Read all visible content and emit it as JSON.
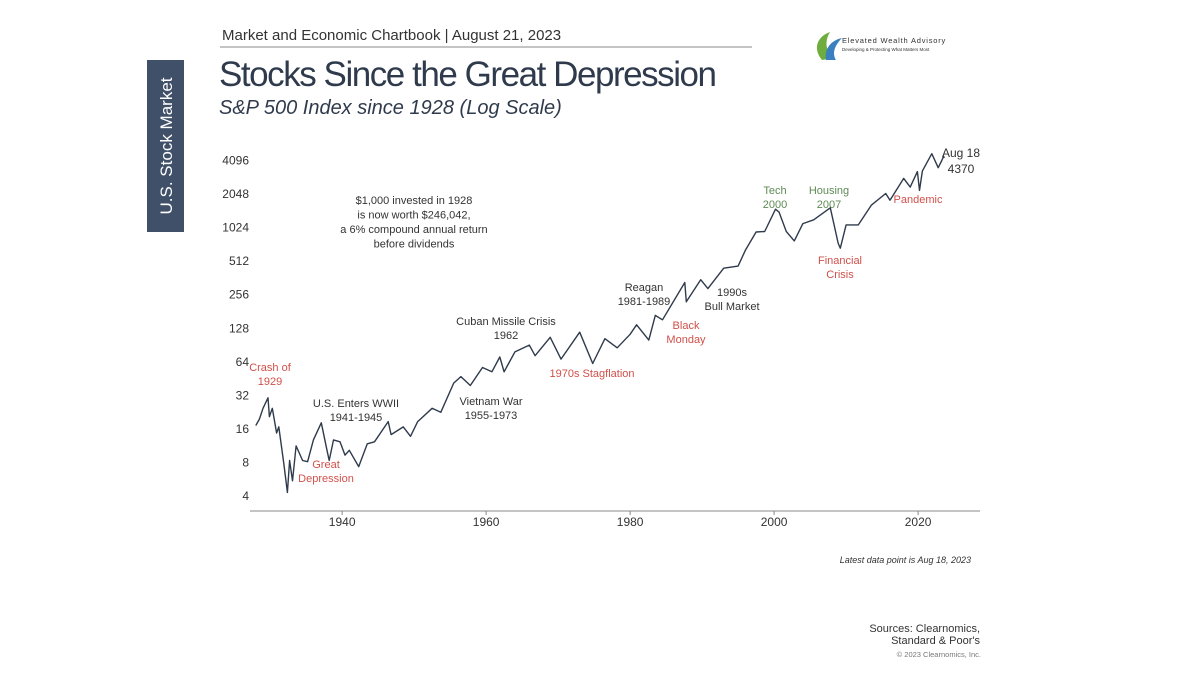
{
  "header": {
    "text": "Market and Economic Chartbook | August 21, 2023"
  },
  "sidebar": {
    "label": "U.S. Stock Market"
  },
  "logo": {
    "name": "Elevated Wealth Advisory",
    "tagline": "Developing & Protecting What Matters Most"
  },
  "chart_data": {
    "type": "line",
    "title": "Stocks Since the Great Depression",
    "subtitle": "S&P 500 Index since 1928 (Log Scale)",
    "log_scale": true,
    "grid": false,
    "color": "#2f3b4c",
    "x": [
      1928.0,
      1928.5,
      1929.0,
      1929.7,
      1929.9,
      1930.3,
      1930.9,
      1931.2,
      1931.9,
      1932.4,
      1932.7,
      1933.1,
      1933.6,
      1934.5,
      1935.2,
      1936.0,
      1937.1,
      1937.9,
      1938.2,
      1938.8,
      1939.7,
      1940.4,
      1941.0,
      1942.3,
      1943.5,
      1944.5,
      1946.4,
      1946.8,
      1948.5,
      1949.5,
      1950.5,
      1952.5,
      1953.7,
      1955.5,
      1956.5,
      1957.8,
      1959.5,
      1960.8,
      1961.9,
      1962.5,
      1964.0,
      1966.0,
      1966.8,
      1968.9,
      1970.4,
      1973.0,
      1974.8,
      1976.5,
      1978.2,
      1980.0,
      1980.9,
      1982.6,
      1983.5,
      1984.5,
      1987.6,
      1987.8,
      1989.8,
      1990.8,
      1993.0,
      1995.0,
      1996.0,
      1997.5,
      1998.7,
      2000.2,
      2000.7,
      2001.7,
      2002.8,
      2004.0,
      2005.5,
      2007.8,
      2008.9,
      2009.2,
      2010.0,
      2011.7,
      2013.5,
      2015.5,
      2016.1,
      2018.0,
      2018.9,
      2019.9,
      2020.2,
      2020.6,
      2021.9,
      2022.8,
      2023.3,
      2023.55,
      2023.63
    ],
    "values": [
      17.5,
      20,
      25,
      31,
      21,
      25,
      15,
      17,
      8,
      4.4,
      8.5,
      5.6,
      11.5,
      8.5,
      8.3,
      13,
      18.5,
      10.5,
      8.5,
      13,
      12.5,
      9.5,
      10.5,
      7.5,
      12,
      12.5,
      19,
      14.5,
      17,
      14,
      19,
      25,
      23,
      42,
      48,
      40,
      58,
      53,
      72,
      53,
      80,
      92,
      74,
      108,
      69,
      120,
      63,
      105,
      87,
      115,
      140,
      102,
      170,
      155,
      335,
      225,
      355,
      295,
      450,
      470,
      650,
      950,
      960,
      1520,
      1430,
      960,
      790,
      1130,
      1220,
      1565,
      750,
      680,
      1100,
      1100,
      1650,
      2100,
      1830,
      2870,
      2400,
      3300,
      2240,
      3350,
      4780,
      3580,
      4150,
      4540,
      4370
    ],
    "end_label": "Aug 18",
    "xlim": [
      1927.2,
      2028.6
    ],
    "xticks": [
      1940,
      1960,
      1980,
      2000,
      2020
    ],
    "ylim": [
      3,
      5600
    ],
    "yticks": [
      4,
      8,
      16,
      32,
      64,
      128,
      256,
      512,
      1024,
      2048,
      4096
    ],
    "annotations": [
      {
        "lines": [
          "Crash of",
          "1929"
        ],
        "color": "#d0504a"
      },
      {
        "lines": [
          "Great",
          "Depression"
        ],
        "color": "#d0504a"
      },
      {
        "lines": [
          "U.S. Enters WWII",
          "1941-1945"
        ],
        "color": "#333333"
      },
      {
        "lines": [
          "Vietnam War",
          "1955-1973"
        ],
        "color": "#333333"
      },
      {
        "lines": [
          "Cuban Missile Crisis",
          "1962"
        ],
        "color": "#333333"
      },
      {
        "lines": [
          "1970s Stagflation"
        ],
        "color": "#d0504a"
      },
      {
        "lines": [
          "Reagan",
          "1981-1989"
        ],
        "color": "#333333"
      },
      {
        "lines": [
          "Black",
          "Monday"
        ],
        "color": "#d0504a"
      },
      {
        "lines": [
          "1990s",
          "Bull Market"
        ],
        "color": "#333333"
      },
      {
        "lines": [
          "Tech",
          "2000"
        ],
        "color": "#5f8a55"
      },
      {
        "lines": [
          "Housing",
          "2007"
        ],
        "color": "#5f8a55"
      },
      {
        "lines": [
          "Financial",
          "Crisis"
        ],
        "color": "#d0504a"
      },
      {
        "lines": [
          "Pandemic"
        ],
        "color": "#d0504a"
      },
      {
        "lines": [
          "$1,000 invested in 1928",
          "is now worth $246,042,",
          "a 6% compound annual return",
          "before dividends"
        ],
        "color": "#333333"
      }
    ]
  },
  "footer": {
    "note": "Latest data point is Aug 18, 2023",
    "sources": [
      "Sources: Clearnomics,",
      "Standard & Poor's"
    ],
    "copyright": "© 2023 Clearnomics, Inc."
  }
}
